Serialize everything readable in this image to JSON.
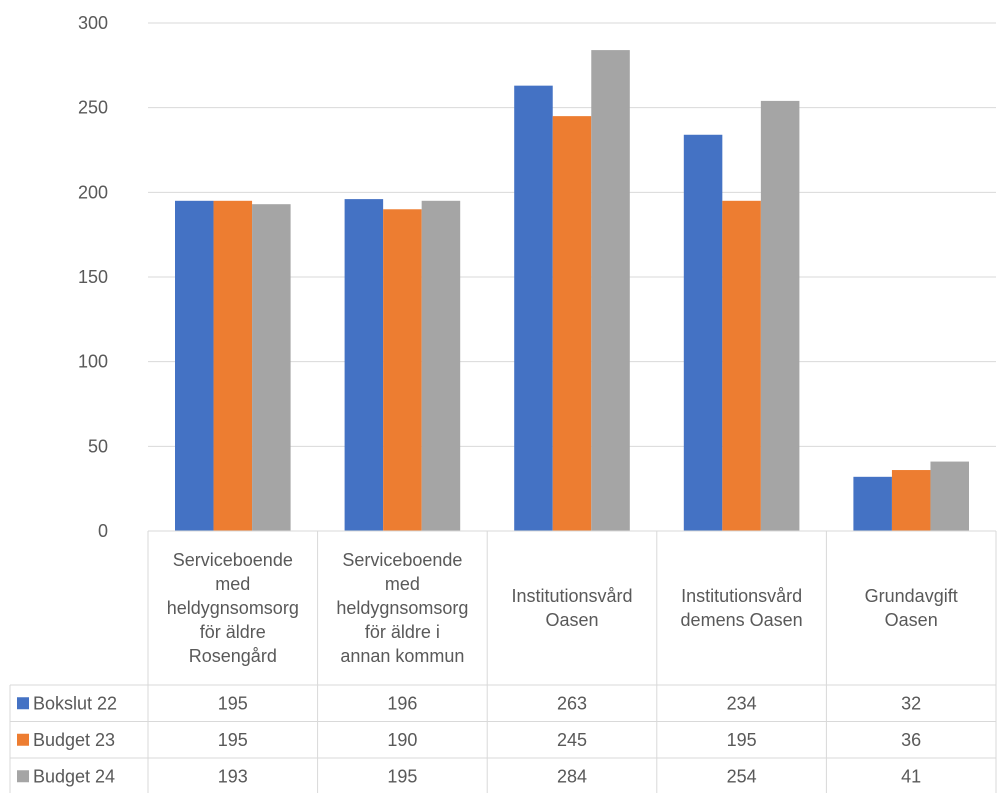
{
  "chart_data": {
    "type": "bar",
    "categories": [
      "Serviceboende med heldygnsomsorg för äldre Rosengård",
      "Serviceboende med heldygnsomsorg för äldre i annan kommun",
      "Institutionsvård Oasen",
      "Institutionsvård demens Oasen",
      "Grundavgift Oasen"
    ],
    "category_lines": [
      [
        "Serviceboende",
        "med",
        "heldygnsomsorg",
        "för äldre",
        "Rosengård"
      ],
      [
        "Serviceboende",
        "med",
        "heldygnsomsorg",
        "för äldre i",
        "annan kommun"
      ],
      [
        "Institutionsvård",
        "Oasen"
      ],
      [
        "Institutionsvård",
        "demens Oasen"
      ],
      [
        "Grundavgift",
        "Oasen"
      ]
    ],
    "series": [
      {
        "name": "Bokslut 22",
        "color": "#4472C4",
        "values": [
          195,
          196,
          263,
          234,
          32
        ]
      },
      {
        "name": "Budget 23",
        "color": "#ED7D31",
        "values": [
          195,
          190,
          245,
          195,
          36
        ]
      },
      {
        "name": "Budget 24",
        "color": "#A5A5A5",
        "values": [
          193,
          195,
          284,
          254,
          41
        ]
      }
    ],
    "ylim": [
      0,
      300
    ],
    "yticks": [
      0,
      50,
      100,
      150,
      200,
      250,
      300
    ],
    "grid": true,
    "legend": "data-table",
    "title": "",
    "xlabel": "",
    "ylabel": ""
  }
}
